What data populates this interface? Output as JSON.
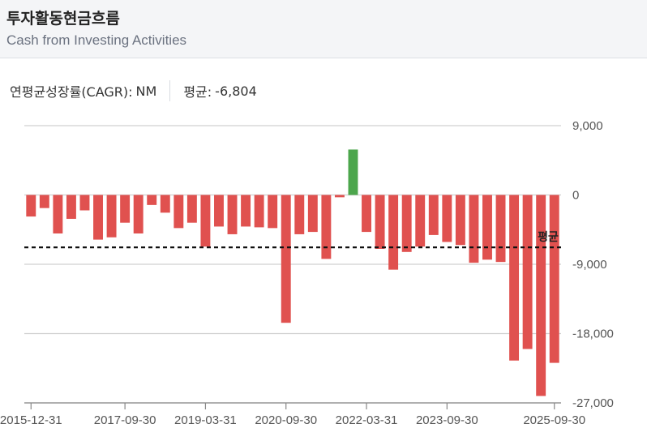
{
  "header": {
    "title": "투자활동현금흐름",
    "subtitle": "Cash from Investing Activities"
  },
  "stats": {
    "cagr_label": "연평균성장률(CAGR):",
    "cagr_value": "NM",
    "avg_label": "평균:",
    "avg_value": "-6,804"
  },
  "colors": {
    "negative": "#e0514f",
    "positive": "#4ca64c",
    "average_line": "#111111",
    "grid": "#d0d0d0"
  },
  "chart_data": {
    "type": "bar",
    "title": "투자활동현금흐름",
    "subtitle": "Cash from Investing Activities",
    "ylim": [
      -27000,
      9000
    ],
    "yticks": [
      9000,
      0,
      -9000,
      -18000,
      -27000
    ],
    "ytick_labels": [
      "9,000",
      "0",
      "-9,000",
      "-18,000",
      "-27,000"
    ],
    "xtick_labels": [
      "2015-12-31",
      "2017-09-30",
      "2019-03-31",
      "2020-09-30",
      "2022-03-31",
      "2023-09-30",
      "2025-09-30"
    ],
    "xtick_indices": [
      0,
      7,
      13,
      19,
      25,
      31,
      39
    ],
    "average": -6804,
    "average_label": "평균",
    "values": [
      -2800,
      -1700,
      -5000,
      -3100,
      -2000,
      -5800,
      -5500,
      -3600,
      -5000,
      -1300,
      -2300,
      -4300,
      -3600,
      -6700,
      -4100,
      -5100,
      -4100,
      -4200,
      -4300,
      -16600,
      -5100,
      -4800,
      -8300,
      -300,
      5900,
      -4800,
      -7000,
      -9700,
      -7400,
      -6700,
      -5200,
      -6100,
      -6500,
      -8800,
      -8400,
      -8700,
      -21500,
      -20000,
      -26100,
      -21800
    ],
    "grid": true,
    "legend": "none"
  }
}
